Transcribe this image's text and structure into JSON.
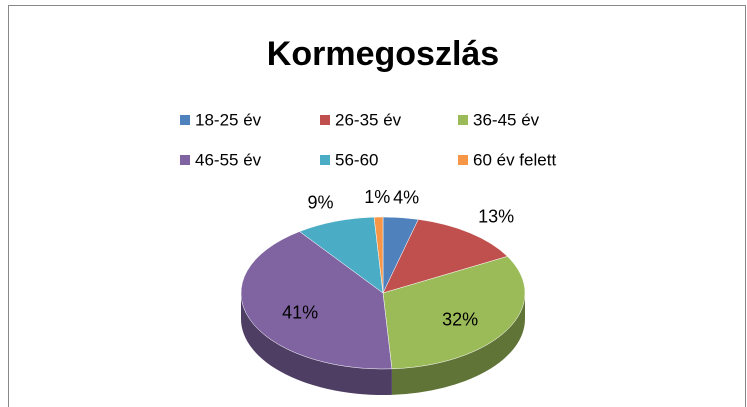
{
  "chart_data": {
    "type": "pie",
    "title": "Kormegoszlás",
    "categories": [
      "18-25 év",
      "26-35 év",
      "36-45 év",
      "46-55 év",
      "56-60",
      "60 év felett"
    ],
    "values": [
      4,
      13,
      32,
      41,
      9,
      1
    ],
    "value_labels": [
      "4%",
      "13%",
      "32%",
      "41%",
      "9%",
      "1%"
    ],
    "colors": [
      "#4f81bd",
      "#c0504d",
      "#9bbb59",
      "#8064a2",
      "#4bacc6",
      "#f79646"
    ]
  }
}
